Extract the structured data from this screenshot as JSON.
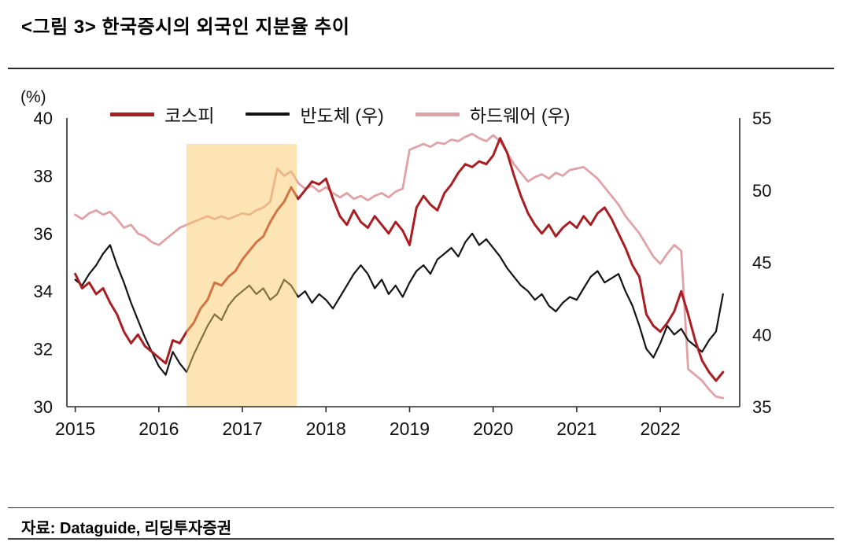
{
  "chart_data": {
    "type": "line",
    "title": "<그림 3> 한국증시의 외국인 지분율 추이",
    "unit_label": "(%)",
    "source": "자료: Dataguide, 리딩투자증권",
    "legend_position": "top",
    "grid": false,
    "xlim": [
      2014.9,
      2022.95
    ],
    "x_tick_labels": [
      "2015",
      "2016",
      "2017",
      "2018",
      "2019",
      "2020",
      "2021",
      "2022"
    ],
    "x_tick_values": [
      2015,
      2016,
      2017,
      2018,
      2019,
      2020,
      2021,
      2022
    ],
    "left_axis": {
      "label": "(%)",
      "min": 30,
      "max": 40,
      "ticks": [
        30,
        32,
        34,
        36,
        38,
        40
      ]
    },
    "right_axis": {
      "min": 35,
      "max": 55,
      "ticks": [
        35,
        40,
        45,
        50,
        55
      ]
    },
    "highlight_band": {
      "x_start": 2016.33,
      "x_end": 2017.65,
      "color": "#f9c96a",
      "opacity": 0.5
    },
    "x": [
      2015.0,
      2015.083,
      2015.167,
      2015.25,
      2015.333,
      2015.417,
      2015.5,
      2015.583,
      2015.667,
      2015.75,
      2015.833,
      2015.917,
      2016.0,
      2016.083,
      2016.167,
      2016.25,
      2016.333,
      2016.417,
      2016.5,
      2016.583,
      2016.667,
      2016.75,
      2016.833,
      2016.917,
      2017.0,
      2017.083,
      2017.167,
      2017.25,
      2017.333,
      2017.417,
      2017.5,
      2017.583,
      2017.667,
      2017.75,
      2017.833,
      2017.917,
      2018.0,
      2018.083,
      2018.167,
      2018.25,
      2018.333,
      2018.417,
      2018.5,
      2018.583,
      2018.667,
      2018.75,
      2018.833,
      2018.917,
      2019.0,
      2019.083,
      2019.167,
      2019.25,
      2019.333,
      2019.417,
      2019.5,
      2019.583,
      2019.667,
      2019.75,
      2019.833,
      2019.917,
      2020.0,
      2020.083,
      2020.167,
      2020.25,
      2020.333,
      2020.417,
      2020.5,
      2020.583,
      2020.667,
      2020.75,
      2020.833,
      2020.917,
      2021.0,
      2021.083,
      2021.167,
      2021.25,
      2021.333,
      2021.417,
      2021.5,
      2021.583,
      2021.667,
      2021.75,
      2021.833,
      2021.917,
      2022.0,
      2022.083,
      2022.167,
      2022.25,
      2022.333,
      2022.417,
      2022.5,
      2022.583,
      2022.667,
      2022.75
    ],
    "series": [
      {
        "name": "코스피",
        "axis": "left",
        "color": "#a91e22",
        "line_width": 3,
        "values": [
          34.6,
          34.1,
          34.3,
          33.9,
          34.1,
          33.6,
          33.2,
          32.6,
          32.2,
          32.5,
          32.1,
          31.9,
          31.7,
          31.5,
          32.3,
          32.2,
          32.6,
          32.9,
          33.4,
          33.7,
          34.3,
          34.2,
          34.5,
          34.7,
          35.1,
          35.4,
          35.7,
          35.9,
          36.4,
          36.8,
          37.1,
          37.6,
          37.2,
          37.5,
          37.8,
          37.7,
          37.9,
          37.2,
          36.6,
          36.3,
          36.8,
          36.4,
          36.2,
          36.6,
          36.3,
          36.0,
          36.4,
          36.1,
          35.6,
          36.9,
          37.3,
          37.0,
          36.8,
          37.4,
          37.7,
          38.1,
          38.4,
          38.3,
          38.5,
          38.4,
          38.7,
          39.3,
          38.8,
          38.0,
          37.3,
          36.7,
          36.3,
          36.0,
          36.3,
          35.9,
          36.2,
          36.4,
          36.2,
          36.6,
          36.3,
          36.7,
          36.9,
          36.5,
          36.0,
          35.5,
          34.9,
          34.5,
          33.2,
          32.8,
          32.6,
          32.9,
          33.3,
          34.0,
          33.2,
          32.3,
          31.6,
          31.2,
          30.9,
          31.2
        ]
      },
      {
        "name": "반도체 (우)",
        "axis": "right",
        "color": "#141414",
        "line_width": 2.2,
        "values": [
          43.8,
          43.4,
          44.2,
          44.8,
          45.6,
          46.2,
          44.8,
          43.6,
          42.2,
          41.0,
          39.8,
          38.8,
          37.8,
          37.2,
          38.8,
          38.0,
          37.4,
          38.6,
          39.6,
          40.6,
          41.4,
          41.0,
          42.0,
          42.6,
          43.0,
          43.4,
          42.8,
          43.2,
          42.4,
          42.8,
          43.8,
          43.4,
          42.6,
          43.0,
          42.2,
          42.8,
          42.4,
          41.8,
          42.6,
          43.4,
          44.2,
          44.8,
          44.2,
          43.2,
          43.8,
          42.8,
          43.4,
          42.6,
          43.6,
          44.4,
          44.8,
          44.2,
          45.2,
          45.6,
          46.0,
          45.4,
          46.4,
          47.0,
          46.2,
          46.6,
          46.0,
          45.4,
          44.6,
          44.0,
          43.4,
          43.0,
          42.4,
          42.8,
          42.0,
          41.6,
          42.2,
          42.6,
          42.4,
          43.2,
          44.0,
          44.4,
          43.6,
          43.9,
          44.2,
          43.0,
          42.0,
          40.6,
          39.0,
          38.4,
          39.4,
          40.6,
          40.0,
          40.4,
          39.6,
          39.2,
          38.8,
          39.6,
          40.2,
          42.8
        ]
      },
      {
        "name": "하드웨어 (우)",
        "axis": "right",
        "color": "#e0a2a6",
        "line_width": 2.8,
        "values": [
          48.3,
          48.0,
          48.4,
          48.6,
          48.3,
          48.5,
          48.0,
          47.4,
          47.6,
          47.0,
          46.8,
          46.4,
          46.2,
          46.6,
          47.0,
          47.4,
          47.6,
          47.8,
          48.0,
          48.2,
          48.0,
          48.2,
          48.0,
          48.2,
          48.4,
          48.3,
          48.6,
          48.8,
          49.2,
          51.5,
          51.0,
          51.3,
          50.5,
          50.1,
          50.3,
          49.9,
          50.2,
          49.8,
          49.5,
          49.8,
          49.4,
          49.6,
          49.3,
          49.6,
          49.8,
          49.5,
          49.9,
          50.1,
          52.8,
          53.0,
          53.2,
          53.0,
          53.3,
          53.2,
          53.5,
          53.4,
          53.7,
          53.9,
          53.6,
          53.4,
          53.8,
          53.4,
          52.6,
          51.8,
          51.2,
          50.6,
          50.9,
          51.1,
          50.8,
          51.2,
          51.0,
          51.4,
          51.5,
          51.6,
          51.2,
          50.8,
          50.2,
          49.6,
          49.0,
          48.2,
          47.6,
          47.0,
          46.2,
          45.4,
          44.9,
          45.6,
          46.2,
          45.8,
          37.6,
          37.2,
          36.8,
          36.2,
          35.7,
          35.6
        ]
      }
    ]
  }
}
